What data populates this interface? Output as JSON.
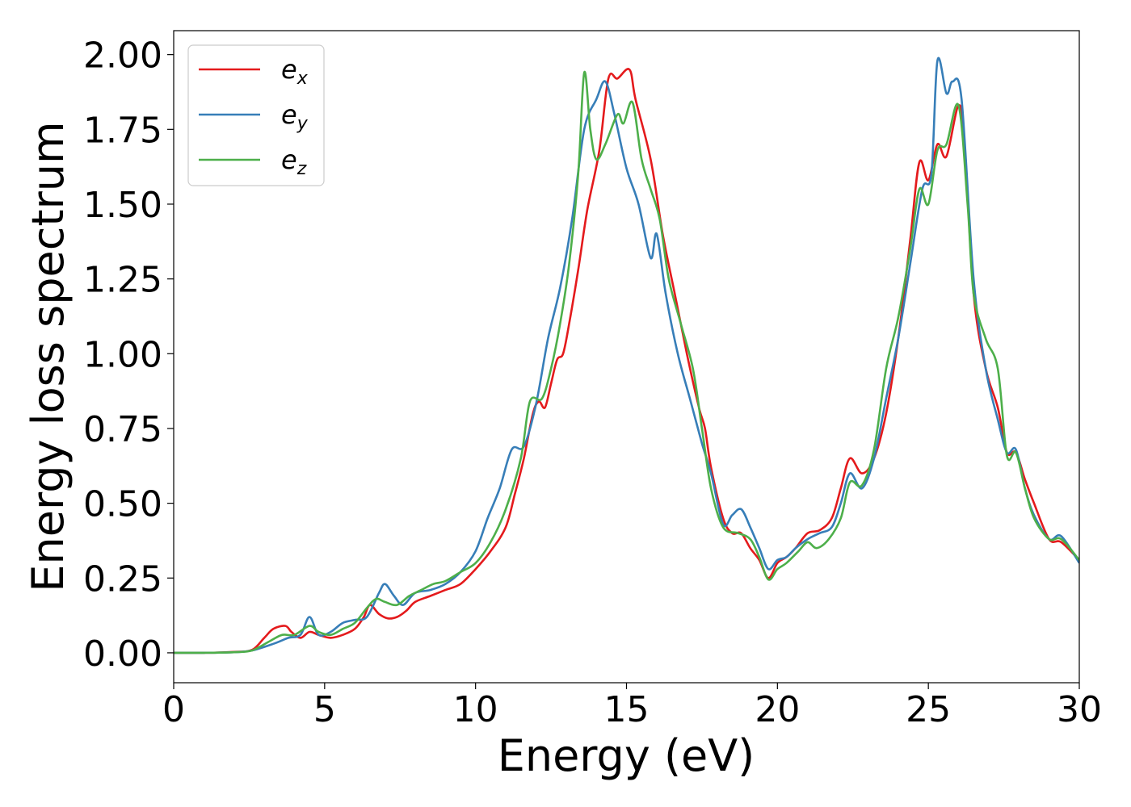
{
  "chart_data": {
    "type": "line",
    "xlabel": "Energy (eV)",
    "ylabel": "Energy loss spectrum",
    "xlim": [
      0,
      30
    ],
    "ylim": [
      -0.1,
      2.08
    ],
    "xticks": [
      0,
      5,
      10,
      15,
      20,
      25,
      30
    ],
    "xtick_labels": [
      "0",
      "5",
      "10",
      "15",
      "20",
      "25",
      "30"
    ],
    "yticks": [
      0.0,
      0.25,
      0.5,
      0.75,
      1.0,
      1.25,
      1.5,
      1.75,
      2.0
    ],
    "ytick_labels": [
      "0.00",
      "0.25",
      "0.50",
      "0.75",
      "1.00",
      "1.25",
      "1.50",
      "1.75",
      "2.00"
    ],
    "grid": false,
    "legend_position": "top-left",
    "series": [
      {
        "name": "e",
        "subscript": "x",
        "color": "#e41a1c",
        "points": [
          [
            0,
            0
          ],
          [
            1,
            0
          ],
          [
            2,
            0.003
          ],
          [
            2.6,
            0.01
          ],
          [
            3,
            0.05
          ],
          [
            3.3,
            0.08
          ],
          [
            3.7,
            0.09
          ],
          [
            3.9,
            0.07
          ],
          [
            4.2,
            0.05
          ],
          [
            4.5,
            0.07
          ],
          [
            4.8,
            0.06
          ],
          [
            5.2,
            0.05
          ],
          [
            5.6,
            0.06
          ],
          [
            6,
            0.08
          ],
          [
            6.3,
            0.12
          ],
          [
            6.5,
            0.16
          ],
          [
            6.8,
            0.13
          ],
          [
            7.1,
            0.115
          ],
          [
            7.4,
            0.12
          ],
          [
            7.7,
            0.14
          ],
          [
            8,
            0.17
          ],
          [
            8.5,
            0.19
          ],
          [
            9,
            0.21
          ],
          [
            9.5,
            0.23
          ],
          [
            10,
            0.28
          ],
          [
            10.5,
            0.34
          ],
          [
            11,
            0.42
          ],
          [
            11.3,
            0.53
          ],
          [
            11.6,
            0.65
          ],
          [
            11.9,
            0.8
          ],
          [
            12.1,
            0.84
          ],
          [
            12.3,
            0.82
          ],
          [
            12.5,
            0.9
          ],
          [
            12.7,
            0.98
          ],
          [
            12.9,
            1.0
          ],
          [
            13.1,
            1.1
          ],
          [
            13.4,
            1.28
          ],
          [
            13.7,
            1.48
          ],
          [
            14.1,
            1.68
          ],
          [
            14.4,
            1.92
          ],
          [
            14.7,
            1.92
          ],
          [
            15.1,
            1.95
          ],
          [
            15.3,
            1.85
          ],
          [
            15.8,
            1.65
          ],
          [
            16.2,
            1.4
          ],
          [
            16.6,
            1.2
          ],
          [
            17,
            1.0
          ],
          [
            17.4,
            0.82
          ],
          [
            17.6,
            0.75
          ],
          [
            17.8,
            0.62
          ],
          [
            18.2,
            0.45
          ],
          [
            18.5,
            0.4
          ],
          [
            18.8,
            0.4
          ],
          [
            19.1,
            0.35
          ],
          [
            19.4,
            0.31
          ],
          [
            19.7,
            0.25
          ],
          [
            20,
            0.3
          ],
          [
            20.3,
            0.32
          ],
          [
            20.6,
            0.35
          ],
          [
            21,
            0.4
          ],
          [
            21.4,
            0.41
          ],
          [
            21.8,
            0.45
          ],
          [
            22.1,
            0.55
          ],
          [
            22.4,
            0.65
          ],
          [
            22.8,
            0.6
          ],
          [
            23.2,
            0.65
          ],
          [
            23.6,
            0.8
          ],
          [
            24,
            1.05
          ],
          [
            24.4,
            1.38
          ],
          [
            24.7,
            1.64
          ],
          [
            25,
            1.58
          ],
          [
            25.3,
            1.7
          ],
          [
            25.6,
            1.66
          ],
          [
            26,
            1.83
          ],
          [
            26.2,
            1.7
          ],
          [
            26.5,
            1.2
          ],
          [
            26.9,
            0.95
          ],
          [
            27.3,
            0.82
          ],
          [
            27.6,
            0.67
          ],
          [
            27.9,
            0.67
          ],
          [
            28.2,
            0.58
          ],
          [
            28.5,
            0.5
          ],
          [
            29,
            0.38
          ],
          [
            29.4,
            0.37
          ],
          [
            30,
            0.31
          ]
        ]
      },
      {
        "name": "e",
        "subscript": "y",
        "color": "#377eb8",
        "points": [
          [
            0,
            0
          ],
          [
            1,
            0
          ],
          [
            2,
            0.002
          ],
          [
            2.6,
            0.008
          ],
          [
            3.3,
            0.03
          ],
          [
            3.8,
            0.05
          ],
          [
            4.2,
            0.06
          ],
          [
            4.5,
            0.12
          ],
          [
            4.8,
            0.06
          ],
          [
            5.2,
            0.07
          ],
          [
            5.6,
            0.1
          ],
          [
            6,
            0.11
          ],
          [
            6.4,
            0.12
          ],
          [
            6.8,
            0.2
          ],
          [
            7,
            0.23
          ],
          [
            7.3,
            0.19
          ],
          [
            7.6,
            0.16
          ],
          [
            8,
            0.2
          ],
          [
            8.5,
            0.21
          ],
          [
            9,
            0.23
          ],
          [
            9.5,
            0.27
          ],
          [
            10,
            0.34
          ],
          [
            10.4,
            0.45
          ],
          [
            10.8,
            0.55
          ],
          [
            11.2,
            0.68
          ],
          [
            11.6,
            0.69
          ],
          [
            12,
            0.83
          ],
          [
            12.4,
            1.05
          ],
          [
            12.8,
            1.22
          ],
          [
            13.2,
            1.45
          ],
          [
            13.6,
            1.75
          ],
          [
            14,
            1.85
          ],
          [
            14.3,
            1.91
          ],
          [
            14.6,
            1.8
          ],
          [
            15,
            1.62
          ],
          [
            15.4,
            1.5
          ],
          [
            15.8,
            1.32
          ],
          [
            16,
            1.4
          ],
          [
            16.3,
            1.2
          ],
          [
            16.7,
            1.0
          ],
          [
            17.1,
            0.85
          ],
          [
            17.5,
            0.7
          ],
          [
            17.8,
            0.6
          ],
          [
            18.2,
            0.43
          ],
          [
            18.5,
            0.46
          ],
          [
            18.8,
            0.48
          ],
          [
            19.1,
            0.42
          ],
          [
            19.4,
            0.35
          ],
          [
            19.7,
            0.28
          ],
          [
            20,
            0.31
          ],
          [
            20.3,
            0.32
          ],
          [
            20.6,
            0.35
          ],
          [
            21,
            0.38
          ],
          [
            21.4,
            0.4
          ],
          [
            21.8,
            0.42
          ],
          [
            22.1,
            0.5
          ],
          [
            22.4,
            0.6
          ],
          [
            22.8,
            0.55
          ],
          [
            23.2,
            0.65
          ],
          [
            23.6,
            0.85
          ],
          [
            24,
            1.05
          ],
          [
            24.4,
            1.3
          ],
          [
            24.8,
            1.55
          ],
          [
            25.1,
            1.6
          ],
          [
            25.3,
            1.98
          ],
          [
            25.6,
            1.87
          ],
          [
            25.8,
            1.91
          ],
          [
            26.1,
            1.85
          ],
          [
            26.5,
            1.25
          ],
          [
            26.9,
            0.95
          ],
          [
            27.3,
            0.78
          ],
          [
            27.6,
            0.67
          ],
          [
            27.9,
            0.68
          ],
          [
            28.2,
            0.55
          ],
          [
            28.5,
            0.46
          ],
          [
            29,
            0.38
          ],
          [
            29.4,
            0.39
          ],
          [
            30,
            0.3
          ]
        ]
      },
      {
        "name": "e",
        "subscript": "z",
        "color": "#4daf4a",
        "points": [
          [
            0,
            0
          ],
          [
            1,
            0
          ],
          [
            2,
            0.002
          ],
          [
            2.6,
            0.008
          ],
          [
            3.2,
            0.04
          ],
          [
            3.6,
            0.06
          ],
          [
            4,
            0.06
          ],
          [
            4.5,
            0.09
          ],
          [
            4.8,
            0.07
          ],
          [
            5.2,
            0.06
          ],
          [
            5.6,
            0.08
          ],
          [
            6,
            0.1
          ],
          [
            6.4,
            0.15
          ],
          [
            6.7,
            0.18
          ],
          [
            7,
            0.17
          ],
          [
            7.4,
            0.16
          ],
          [
            7.8,
            0.19
          ],
          [
            8.2,
            0.21
          ],
          [
            8.6,
            0.23
          ],
          [
            9,
            0.24
          ],
          [
            9.5,
            0.27
          ],
          [
            10,
            0.3
          ],
          [
            10.5,
            0.37
          ],
          [
            11,
            0.48
          ],
          [
            11.5,
            0.65
          ],
          [
            11.8,
            0.84
          ],
          [
            12.2,
            0.85
          ],
          [
            12.5,
            0.95
          ],
          [
            12.8,
            1.1
          ],
          [
            13.1,
            1.3
          ],
          [
            13.4,
            1.6
          ],
          [
            13.6,
            1.94
          ],
          [
            13.8,
            1.75
          ],
          [
            14,
            1.65
          ],
          [
            14.3,
            1.7
          ],
          [
            14.7,
            1.8
          ],
          [
            14.9,
            1.77
          ],
          [
            15.2,
            1.84
          ],
          [
            15.5,
            1.65
          ],
          [
            15.8,
            1.55
          ],
          [
            16.1,
            1.45
          ],
          [
            16.4,
            1.25
          ],
          [
            16.8,
            1.1
          ],
          [
            17.2,
            0.95
          ],
          [
            17.5,
            0.75
          ],
          [
            17.8,
            0.55
          ],
          [
            18.2,
            0.42
          ],
          [
            18.7,
            0.4
          ],
          [
            19.1,
            0.38
          ],
          [
            19.4,
            0.32
          ],
          [
            19.7,
            0.245
          ],
          [
            20,
            0.28
          ],
          [
            20.3,
            0.3
          ],
          [
            20.7,
            0.34
          ],
          [
            21,
            0.37
          ],
          [
            21.3,
            0.35
          ],
          [
            21.7,
            0.38
          ],
          [
            22.1,
            0.45
          ],
          [
            22.4,
            0.57
          ],
          [
            22.8,
            0.56
          ],
          [
            23.2,
            0.68
          ],
          [
            23.6,
            0.95
          ],
          [
            24,
            1.12
          ],
          [
            24.4,
            1.35
          ],
          [
            24.7,
            1.55
          ],
          [
            25,
            1.5
          ],
          [
            25.3,
            1.68
          ],
          [
            25.6,
            1.7
          ],
          [
            26,
            1.83
          ],
          [
            26.3,
            1.5
          ],
          [
            26.5,
            1.2
          ],
          [
            26.9,
            1.05
          ],
          [
            27.3,
            0.95
          ],
          [
            27.6,
            0.66
          ],
          [
            27.9,
            0.67
          ],
          [
            28.2,
            0.55
          ],
          [
            28.5,
            0.45
          ],
          [
            29,
            0.38
          ],
          [
            29.4,
            0.38
          ],
          [
            30,
            0.31
          ]
        ]
      }
    ]
  }
}
